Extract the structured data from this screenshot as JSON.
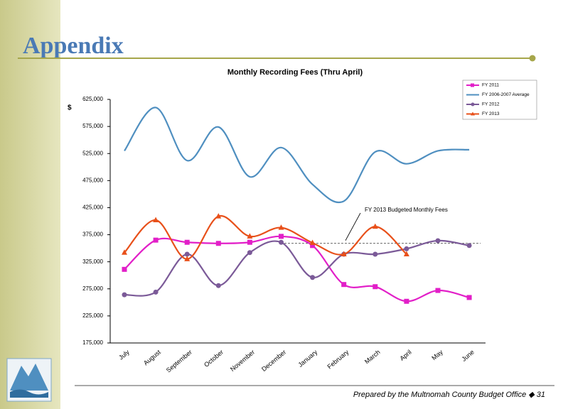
{
  "header": {
    "title": "Appendix"
  },
  "chart_data": {
    "type": "line",
    "title": "Monthly Recording Fees (Thru April)",
    "y_label": "$",
    "categories": [
      "July",
      "August",
      "September",
      "October",
      "November",
      "December",
      "January",
      "February",
      "March",
      "April",
      "May",
      "June"
    ],
    "series": [
      {
        "name": "FY 2011",
        "color": "#e21fc8",
        "marker": "square",
        "values": [
          311000,
          365000,
          361000,
          359000,
          361000,
          372000,
          355000,
          283000,
          279000,
          252000,
          272000,
          259000
        ]
      },
      {
        "name": "FY 2006-2007 Average",
        "color": "#4f8fc0",
        "marker": "none",
        "values": [
          530000,
          610000,
          512000,
          574000,
          482000,
          536000,
          468000,
          437000,
          528000,
          506000,
          530000,
          532000
        ]
      },
      {
        "name": "FY 2012",
        "color": "#7b5a98",
        "marker": "circle",
        "values": [
          264000,
          269000,
          339000,
          281000,
          342000,
          361000,
          296000,
          339000,
          339000,
          349000,
          364000,
          355000
        ]
      },
      {
        "name": "FY 2013",
        "color": "#e8501a",
        "marker": "triangle",
        "values": [
          342000,
          402000,
          330000,
          409000,
          372000,
          388000,
          360000,
          339000,
          390000,
          339000,
          null,
          null
        ]
      }
    ],
    "reference_line": {
      "value": 359000,
      "label": "FY 2013 Budgeted Monthly Fees"
    },
    "ylim": [
      175000,
      625000
    ],
    "yticks": [
      {
        "value": 175000,
        "label": "175,000"
      },
      {
        "value": 225000,
        "label": "225,000"
      },
      {
        "value": 275000,
        "label": "275,000"
      },
      {
        "value": 325000,
        "label": "325,000"
      },
      {
        "value": 375000,
        "label": "375,000"
      },
      {
        "value": 425000,
        "label": "425,000"
      },
      {
        "value": 475000,
        "label": "475,000"
      },
      {
        "value": 525000,
        "label": "525,000"
      },
      {
        "value": 575000,
        "label": "575,000"
      },
      {
        "value": 625000,
        "label": "625,000"
      }
    ],
    "legend": "top-right",
    "smooth": true
  },
  "footer": {
    "text": "Prepared by the Multnomah County Budget Office ◆ 31"
  }
}
